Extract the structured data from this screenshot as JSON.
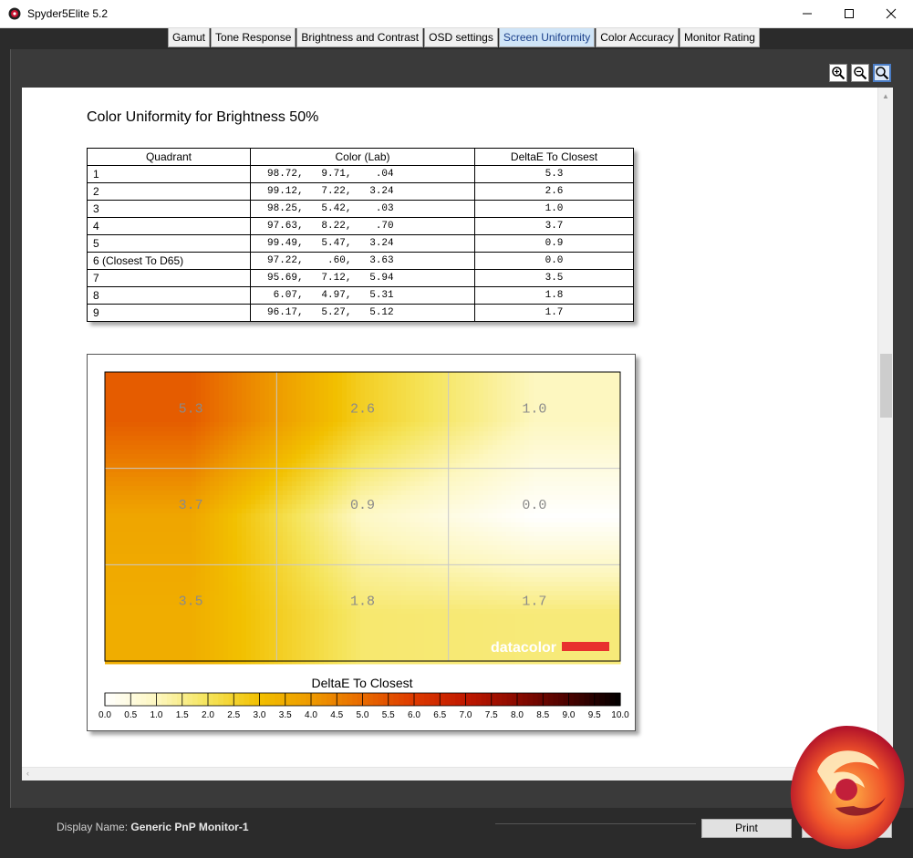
{
  "window": {
    "title": "Spyder5Elite 5.2",
    "minimize_icon": "minimize-icon",
    "maximize_icon": "maximize-icon",
    "close_icon": "close-icon"
  },
  "tabs": [
    {
      "label": "Gamut"
    },
    {
      "label": "Tone Response"
    },
    {
      "label": "Brightness and Contrast"
    },
    {
      "label": "OSD settings"
    },
    {
      "label": "Screen Uniformity",
      "active": true
    },
    {
      "label": "Color Accuracy"
    },
    {
      "label": "Monitor Rating"
    }
  ],
  "zoom": {
    "zoom_in_icon": "zoom-in-icon",
    "zoom_out_icon": "zoom-out-icon",
    "zoom_fit_icon": "zoom-fit-icon"
  },
  "report": {
    "title": "Color Uniformity for Brightness 50%",
    "table": {
      "headers": [
        "Quadrant",
        "Color (Lab)",
        "DeltaE To Closest"
      ],
      "rows": [
        {
          "quadrant": "1",
          "lab": "98.72,   9.71,    .04",
          "delta": "5.3"
        },
        {
          "quadrant": "2",
          "lab": "99.12,   7.22,   3.24",
          "delta": "2.6"
        },
        {
          "quadrant": "3",
          "lab": "98.25,   5.42,    .03",
          "delta": "1.0"
        },
        {
          "quadrant": "4",
          "lab": "97.63,   8.22,    .70",
          "delta": "3.7"
        },
        {
          "quadrant": "5",
          "lab": "99.49,   5.47,   3.24",
          "delta": "0.9"
        },
        {
          "quadrant": "6 (Closest To D65)",
          "lab": "97.22,    .60,   3.63",
          "delta": "0.0"
        },
        {
          "quadrant": "7",
          "lab": "95.69,   7.12,   5.94",
          "delta": "3.5"
        },
        {
          "quadrant": "8",
          "lab": " 6.07,   4.97,   5.31",
          "delta": "1.8"
        },
        {
          "quadrant": "9",
          "lab": "96.17,   5.27,   5.12",
          "delta": "1.7"
        }
      ]
    },
    "brand": "datacolor",
    "brand_color": "#e8302e"
  },
  "chart_data": {
    "type": "heatmap",
    "grid": {
      "rows": 3,
      "cols": 3
    },
    "values": [
      [
        5.3,
        2.6,
        1.0
      ],
      [
        3.7,
        0.9,
        0.0
      ],
      [
        3.5,
        1.8,
        1.7
      ]
    ],
    "cell_labels": [
      [
        "5.3",
        "2.6",
        "1.0"
      ],
      [
        "3.7",
        "0.9",
        "0.0"
      ],
      [
        "3.5",
        "1.8",
        "1.7"
      ]
    ],
    "colorbar_title": "DeltaE To Closest",
    "colorbar_ticks": [
      "0.0",
      "0.5",
      "1.0",
      "1.5",
      "2.0",
      "2.5",
      "3.0",
      "3.5",
      "4.0",
      "4.5",
      "5.0",
      "5.5",
      "6.0",
      "6.5",
      "7.0",
      "7.5",
      "8.0",
      "8.5",
      "9.0",
      "9.5",
      "10.0"
    ],
    "range": [
      0,
      10
    ],
    "colorscale": [
      "#ffffff",
      "#fdf7c0",
      "#f5e45a",
      "#f2c000",
      "#ee9a00",
      "#e86a00",
      "#dd3a00",
      "#c01800",
      "#8a0a00",
      "#4a0200",
      "#000000"
    ]
  },
  "footer": {
    "display_label": "Display Name:",
    "display_value": "Generic PnP Monitor-1",
    "print_label": "Print"
  }
}
